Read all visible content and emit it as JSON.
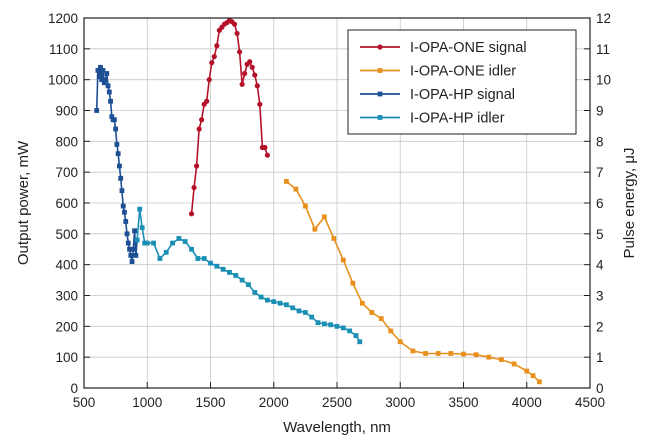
{
  "chart_data": {
    "type": "line",
    "xlabel": "Wavelength, nm",
    "ylabel": "Output power, mW",
    "y2label": "Pulse energy, μJ",
    "xlim": [
      500,
      4500
    ],
    "ylim": [
      0,
      1200
    ],
    "y2lim": [
      0,
      12
    ],
    "xticks": [
      500,
      1000,
      1500,
      2000,
      2500,
      3000,
      3500,
      4000,
      4500
    ],
    "yticks": [
      0,
      100,
      200,
      300,
      400,
      500,
      600,
      700,
      800,
      900,
      1000,
      1100,
      1200
    ],
    "y2ticks": [
      0,
      1,
      2,
      3,
      4,
      5,
      6,
      7,
      8,
      9,
      10,
      11,
      12
    ],
    "grid": true,
    "legend_position": "top-right",
    "series": [
      {
        "name": "I-OPA-ONE signal",
        "color": "#b5122a",
        "marker": "circle",
        "points": [
          [
            1350,
            565
          ],
          [
            1370,
            650
          ],
          [
            1390,
            720
          ],
          [
            1410,
            840
          ],
          [
            1430,
            870
          ],
          [
            1450,
            920
          ],
          [
            1470,
            930
          ],
          [
            1490,
            1000
          ],
          [
            1510,
            1055
          ],
          [
            1530,
            1075
          ],
          [
            1550,
            1110
          ],
          [
            1570,
            1160
          ],
          [
            1590,
            1170
          ],
          [
            1610,
            1180
          ],
          [
            1630,
            1185
          ],
          [
            1650,
            1192
          ],
          [
            1670,
            1188
          ],
          [
            1690,
            1180
          ],
          [
            1710,
            1150
          ],
          [
            1730,
            1090
          ],
          [
            1750,
            985
          ],
          [
            1770,
            1020
          ],
          [
            1790,
            1050
          ],
          [
            1810,
            1058
          ],
          [
            1830,
            1040
          ],
          [
            1850,
            1015
          ],
          [
            1870,
            980
          ],
          [
            1890,
            920
          ],
          [
            1910,
            780
          ],
          [
            1930,
            780
          ],
          [
            1950,
            755
          ]
        ]
      },
      {
        "name": "I-OPA-ONE idler",
        "color": "#e8901b",
        "marker": "square",
        "points": [
          [
            2100,
            670
          ],
          [
            2175,
            645
          ],
          [
            2250,
            590
          ],
          [
            2325,
            515
          ],
          [
            2400,
            555
          ],
          [
            2475,
            485
          ],
          [
            2550,
            415
          ],
          [
            2625,
            340
          ],
          [
            2700,
            275
          ],
          [
            2775,
            245
          ],
          [
            2850,
            225
          ],
          [
            2925,
            185
          ],
          [
            3000,
            150
          ],
          [
            3100,
            120
          ],
          [
            3200,
            112
          ],
          [
            3300,
            112
          ],
          [
            3400,
            112
          ],
          [
            3500,
            110
          ],
          [
            3600,
            108
          ],
          [
            3700,
            100
          ],
          [
            3800,
            92
          ],
          [
            3900,
            78
          ],
          [
            4000,
            55
          ],
          [
            4050,
            40
          ],
          [
            4100,
            20
          ]
        ]
      },
      {
        "name": "I-OPA-HP signal",
        "color": "#1c4f94",
        "marker": "square",
        "points": [
          [
            600,
            900
          ],
          [
            610,
            1030
          ],
          [
            620,
            1010
          ],
          [
            630,
            1040
          ],
          [
            640,
            1000
          ],
          [
            650,
            1030
          ],
          [
            660,
            990
          ],
          [
            670,
            1000
          ],
          [
            680,
            1020
          ],
          [
            690,
            980
          ],
          [
            700,
            960
          ],
          [
            710,
            930
          ],
          [
            720,
            880
          ],
          [
            730,
            870
          ],
          [
            740,
            870
          ],
          [
            750,
            840
          ],
          [
            760,
            790
          ],
          [
            770,
            760
          ],
          [
            780,
            720
          ],
          [
            790,
            680
          ],
          [
            800,
            640
          ],
          [
            810,
            590
          ],
          [
            820,
            570
          ],
          [
            830,
            540
          ],
          [
            840,
            500
          ],
          [
            850,
            470
          ],
          [
            860,
            450
          ],
          [
            870,
            430
          ],
          [
            880,
            410
          ],
          [
            890,
            450
          ],
          [
            900,
            510
          ],
          [
            910,
            430
          ],
          [
            920,
            480
          ]
        ]
      },
      {
        "name": "I-OPA-HP idler",
        "color": "#1a8fb5",
        "marker": "square",
        "points": [
          [
            920,
            480
          ],
          [
            940,
            580
          ],
          [
            960,
            520
          ],
          [
            980,
            470
          ],
          [
            1000,
            470
          ],
          [
            1050,
            470
          ],
          [
            1100,
            420
          ],
          [
            1150,
            440
          ],
          [
            1200,
            470
          ],
          [
            1250,
            485
          ],
          [
            1300,
            475
          ],
          [
            1350,
            450
          ],
          [
            1400,
            420
          ],
          [
            1450,
            420
          ],
          [
            1500,
            405
          ],
          [
            1550,
            395
          ],
          [
            1600,
            385
          ],
          [
            1650,
            375
          ],
          [
            1700,
            365
          ],
          [
            1750,
            350
          ],
          [
            1800,
            335
          ],
          [
            1850,
            310
          ],
          [
            1900,
            295
          ],
          [
            1950,
            285
          ],
          [
            2000,
            280
          ],
          [
            2050,
            275
          ],
          [
            2100,
            270
          ],
          [
            2150,
            260
          ],
          [
            2200,
            250
          ],
          [
            2250,
            245
          ],
          [
            2300,
            230
          ],
          [
            2350,
            212
          ],
          [
            2400,
            208
          ],
          [
            2450,
            205
          ],
          [
            2500,
            200
          ],
          [
            2550,
            195
          ],
          [
            2600,
            185
          ],
          [
            2650,
            170
          ],
          [
            2680,
            150
          ]
        ]
      }
    ]
  }
}
